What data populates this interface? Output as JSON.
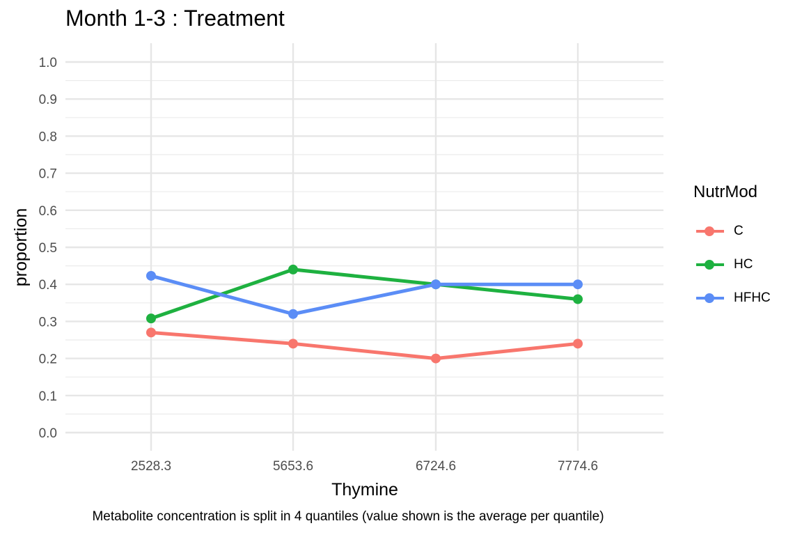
{
  "chart_data": {
    "type": "line",
    "title": "Month 1-3 : Treatment",
    "xlabel": "Thymine",
    "ylabel": "proportion",
    "caption": "Metabolite concentration is split in 4 quantiles (value shown is the average per quantile)",
    "categories": [
      "2528.3",
      "5653.6",
      "6724.6",
      "7774.6"
    ],
    "ylim": [
      0,
      1
    ],
    "yticks": [
      "0.0",
      "0.1",
      "0.2",
      "0.3",
      "0.4",
      "0.5",
      "0.6",
      "0.7",
      "0.8",
      "0.9",
      "1.0"
    ],
    "grid": true,
    "legend_position": "right",
    "legend_title": "NutrMod",
    "series": [
      {
        "name": "C",
        "color": "#F8766D",
        "values": [
          0.27,
          0.24,
          0.2,
          0.24
        ]
      },
      {
        "name": "HC",
        "color": "#1EB140",
        "values": [
          0.308,
          0.44,
          0.4,
          0.36
        ]
      },
      {
        "name": "HFHC",
        "color": "#5B8DF6",
        "values": [
          0.423,
          0.32,
          0.4,
          0.4
        ]
      }
    ]
  }
}
